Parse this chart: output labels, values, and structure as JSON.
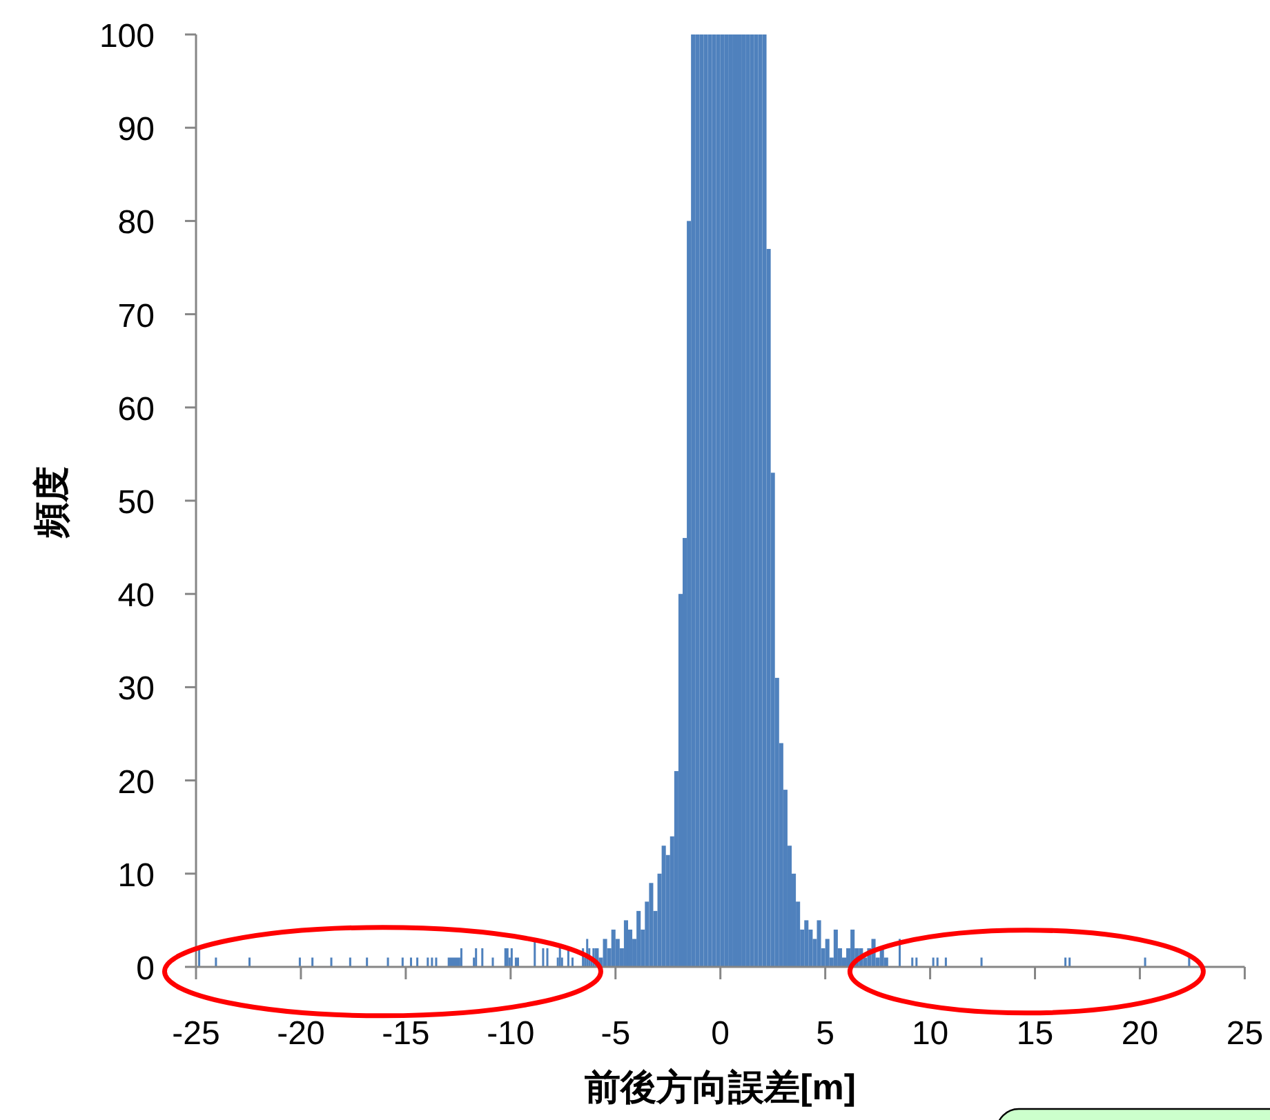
{
  "chart_data": {
    "type": "histogram",
    "xlabel": "前後方向誤差[m]",
    "ylabel": "頻度",
    "color": "#4f81bd",
    "bins": [
      -24.9,
      -24.8,
      -24.1,
      -24,
      -22.5,
      -22.4,
      -20.1,
      -20,
      -19.5,
      -19.4,
      -18.6,
      -18.5,
      -17.7,
      -17.6,
      -16.9,
      -16.8,
      -15.9,
      -15.8,
      -15.2,
      -15.1,
      -14.8,
      -14.7,
      -14.5,
      -14.4,
      -14,
      -13.9,
      -13.8,
      -13.7,
      -13.6,
      -13.5,
      -13,
      -12.4,
      -12.3,
      -11.8,
      -11.7,
      -11.6,
      -11.4,
      -11.3,
      -10.9,
      -10.8,
      -10.3,
      -10.1,
      -10,
      -9.9,
      -9.8,
      -9.6,
      -8.9,
      -8.8,
      -8.5,
      -8.4,
      -8.3,
      -8.2,
      -7.8,
      -7.7,
      -7.6,
      -7.5,
      -7.3,
      -7.2,
      -7.1,
      -7,
      -6.6,
      -6.5,
      -6.4,
      -6.3,
      -6.2,
      -6.1,
      -6,
      -5.8,
      -5.6,
      -5.4,
      -5.2,
      -5,
      -4.8,
      -4.6,
      -4.4,
      -4.2,
      -4,
      -3.8,
      -3.6,
      -3.4,
      -3.2,
      -3,
      -2.8,
      -2.6,
      -2.4,
      -2.2,
      -2,
      -1.8,
      -1.6,
      -1.4,
      -1.2,
      -1,
      -0.8,
      -0.6,
      -0.4,
      -0.2,
      0,
      0.2,
      0.4,
      0.6,
      0.8,
      1,
      1.2,
      1.4,
      1.6,
      1.8,
      2,
      2.2,
      2.4,
      2.6,
      2.8,
      3,
      3.2,
      3.4,
      3.6,
      3.8,
      4,
      4.2,
      4.4,
      4.6,
      4.8,
      5,
      5.2,
      5.4,
      5.6,
      5.8,
      6,
      6.2,
      6.4,
      6.6,
      6.8,
      7,
      7.2,
      7.4,
      7.6,
      7.8,
      8,
      8.5,
      8.6,
      9.1,
      9.2,
      9.3,
      9.4,
      10.1,
      10.2,
      10.3,
      10.4,
      10.7,
      10.8,
      12.4,
      12.5,
      16.4,
      16.5,
      16.6,
      16.7,
      20.2,
      20.3,
      22.3,
      22.4
    ],
    "values": [
      2,
      0,
      1,
      0,
      1,
      0,
      1,
      0,
      1,
      0,
      1,
      0,
      1,
      0,
      1,
      0,
      1,
      0,
      1,
      0,
      1,
      0,
      1,
      0,
      1,
      0,
      1,
      0,
      1,
      0,
      1,
      2,
      0,
      1,
      2,
      0,
      2,
      0,
      1,
      0,
      2,
      1,
      2,
      0,
      1,
      0,
      3,
      0,
      2,
      0,
      2,
      0,
      1,
      2,
      1,
      0,
      2,
      0,
      1,
      0,
      2,
      1,
      3,
      2,
      1,
      2,
      2,
      1,
      3,
      2,
      4,
      3,
      2,
      5,
      4,
      3,
      6,
      4,
      7,
      9,
      6,
      10,
      13,
      12,
      14,
      21,
      40,
      46,
      80,
      100,
      100,
      100,
      100,
      100,
      100,
      100,
      100,
      100,
      100,
      100,
      100,
      100,
      100,
      100,
      100,
      100,
      100,
      77,
      53,
      31,
      24,
      19,
      13,
      10,
      7,
      4,
      5,
      4,
      3,
      5,
      2,
      3,
      1,
      4,
      2,
      1,
      2,
      4,
      2,
      2,
      1,
      2,
      3,
      1,
      2,
      1,
      0,
      3,
      0,
      1,
      0,
      1,
      0,
      1,
      0,
      1,
      0,
      1,
      0,
      1,
      0,
      1,
      0,
      1,
      0,
      1,
      0,
      1
    ],
    "xlim": [
      -25,
      25
    ],
    "xticks": [
      -25,
      -20,
      -15,
      -10,
      -5,
      0,
      5,
      10,
      15,
      20,
      25
    ],
    "ylim": [
      0,
      100
    ],
    "yticks": [
      0,
      10,
      20,
      30,
      40,
      50,
      60,
      70,
      80,
      90,
      100
    ]
  }
}
